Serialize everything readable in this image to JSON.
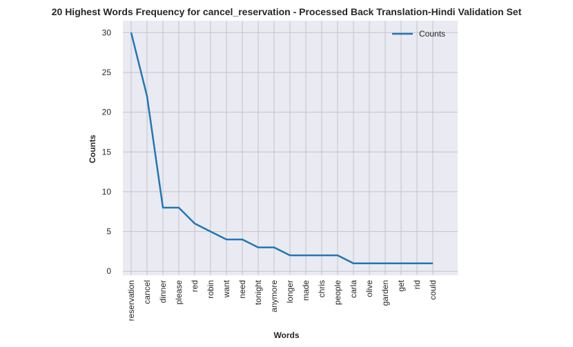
{
  "chart_data": {
    "type": "line",
    "title": "20 Highest Words Frequency for cancel_reservation - Processed Back Translation-Hindi Validation Set",
    "xlabel": "Words",
    "ylabel": "Counts",
    "categories": [
      "reservation",
      "cancel",
      "dinner",
      "please",
      "red",
      "robin",
      "want",
      "need",
      "tonight",
      "anymore",
      "longer",
      "made",
      "chris",
      "people",
      "carla",
      "olive",
      "garden",
      "get",
      "rid",
      "could"
    ],
    "series": [
      {
        "name": "Counts",
        "values": [
          30,
          22,
          8,
          8,
          6,
          5,
          4,
          4,
          3,
          3,
          2,
          2,
          2,
          2,
          1,
          1,
          1,
          1,
          1,
          1
        ]
      }
    ],
    "ylim": [
      -0.5,
      31.5
    ],
    "yticks": [
      0,
      5,
      10,
      15,
      20,
      25,
      30
    ],
    "grid": true,
    "legend_position": "top-right",
    "colors": {
      "line": "#1f77b4",
      "plot_bg": "#eaeaf2",
      "grid": "#c3c3c8"
    }
  }
}
